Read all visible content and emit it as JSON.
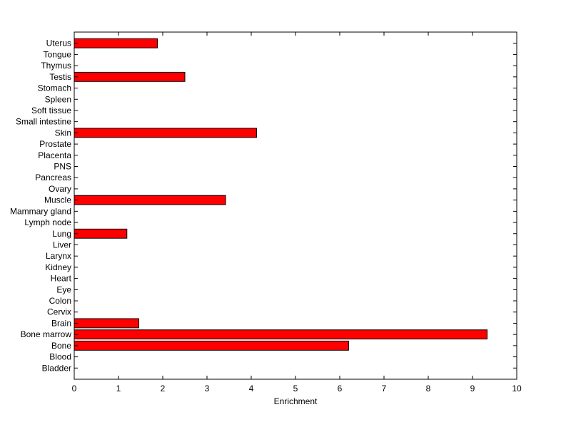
{
  "chart_data": {
    "type": "bar",
    "orientation": "horizontal",
    "categories": [
      "Bladder",
      "Blood",
      "Bone",
      "Bone marrow",
      "Brain",
      "Cervix",
      "Colon",
      "Eye",
      "Heart",
      "Kidney",
      "Larynx",
      "Liver",
      "Lung",
      "Lymph node",
      "Mammary gland",
      "Muscle",
      "Ovary",
      "Pancreas",
      "PNS",
      "Placenta",
      "Prostate",
      "Skin",
      "Small intestine",
      "Soft tissue",
      "Spleen",
      "Stomach",
      "Testis",
      "Thymus",
      "Tongue",
      "Uterus"
    ],
    "values": [
      0,
      0,
      6.2,
      9.33,
      1.46,
      0,
      0,
      0,
      0,
      0,
      0,
      0,
      1.19,
      0,
      0,
      3.42,
      0,
      0,
      0,
      0,
      0,
      4.12,
      0,
      0,
      0,
      0,
      2.5,
      0,
      0,
      1.88
    ],
    "title": "",
    "xlabel": "Enrichment",
    "ylabel": "",
    "xlim": [
      0,
      10
    ],
    "xticks": [
      0,
      1,
      2,
      3,
      4,
      5,
      6,
      7,
      8,
      9,
      10
    ],
    "bar_color": "#ff0000",
    "grid": false
  }
}
